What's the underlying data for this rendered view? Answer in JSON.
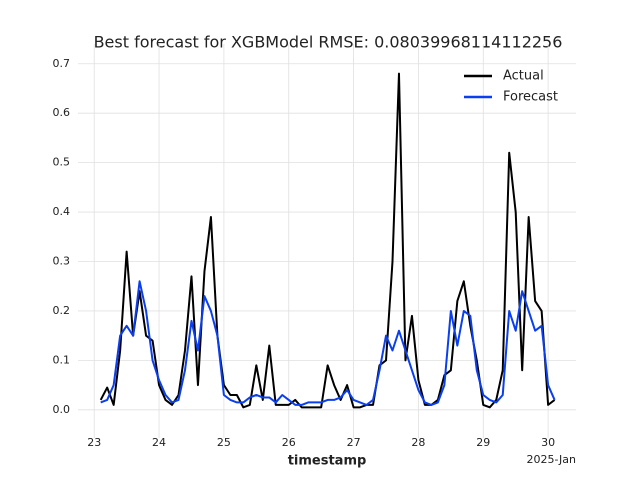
{
  "chart_data": {
    "type": "line",
    "title": "Best forecast for XGBModel RMSE: 0.08039968114112256",
    "x_label": "timestamp",
    "x_offset_label": "2025-Jan",
    "x": [
      23.1,
      23.2,
      23.3,
      23.4,
      23.5,
      23.6,
      23.7,
      23.8,
      23.9,
      24.0,
      24.1,
      24.2,
      24.3,
      24.4,
      24.5,
      24.6,
      24.7,
      24.8,
      24.9,
      25.0,
      25.1,
      25.2,
      25.3,
      25.4,
      25.5,
      25.6,
      25.7,
      25.8,
      25.9,
      26.0,
      26.1,
      26.2,
      26.3,
      26.4,
      26.5,
      26.6,
      26.7,
      26.8,
      26.9,
      27.0,
      27.1,
      27.2,
      27.3,
      27.4,
      27.5,
      27.6,
      27.7,
      27.8,
      27.9,
      28.0,
      28.1,
      28.2,
      28.3,
      28.4,
      28.5,
      28.6,
      28.7,
      28.8,
      28.9,
      29.0,
      29.1,
      29.2,
      29.3,
      29.4,
      29.5,
      29.6,
      29.7,
      29.8,
      29.9,
      30.0,
      30.1
    ],
    "series": [
      {
        "name": "Actual",
        "color": "#000000",
        "values": [
          0.02,
          0.045,
          0.01,
          0.12,
          0.32,
          0.15,
          0.24,
          0.15,
          0.14,
          0.05,
          0.02,
          0.01,
          0.03,
          0.12,
          0.27,
          0.05,
          0.28,
          0.39,
          0.15,
          0.05,
          0.03,
          0.03,
          0.005,
          0.01,
          0.09,
          0.02,
          0.13,
          0.01,
          0.01,
          0.01,
          0.02,
          0.005,
          0.005,
          0.005,
          0.005,
          0.09,
          0.05,
          0.02,
          0.05,
          0.005,
          0.005,
          0.01,
          0.01,
          0.09,
          0.1,
          0.3,
          0.68,
          0.1,
          0.19,
          0.06,
          0.01,
          0.01,
          0.02,
          0.07,
          0.08,
          0.22,
          0.26,
          0.17,
          0.1,
          0.01,
          0.005,
          0.02,
          0.08,
          0.52,
          0.4,
          0.08,
          0.39,
          0.22,
          0.2,
          0.01,
          0.02
        ]
      },
      {
        "name": "Forecast",
        "color": "#0a3ff0",
        "values": [
          0.015,
          0.02,
          0.05,
          0.15,
          0.17,
          0.15,
          0.26,
          0.2,
          0.1,
          0.06,
          0.03,
          0.015,
          0.02,
          0.08,
          0.18,
          0.12,
          0.23,
          0.2,
          0.15,
          0.03,
          0.02,
          0.015,
          0.015,
          0.025,
          0.03,
          0.025,
          0.025,
          0.015,
          0.03,
          0.02,
          0.01,
          0.01,
          0.015,
          0.015,
          0.015,
          0.02,
          0.02,
          0.025,
          0.04,
          0.02,
          0.015,
          0.01,
          0.02,
          0.08,
          0.15,
          0.12,
          0.16,
          0.12,
          0.08,
          0.04,
          0.015,
          0.01,
          0.015,
          0.05,
          0.2,
          0.13,
          0.2,
          0.19,
          0.08,
          0.03,
          0.02,
          0.015,
          0.03,
          0.2,
          0.16,
          0.24,
          0.2,
          0.16,
          0.17,
          0.05,
          0.02
        ]
      }
    ],
    "xlim": [
      22.75,
      30.43
    ],
    "xticks": [
      23,
      24,
      25,
      26,
      27,
      28,
      29,
      30
    ],
    "ylim": [
      -0.057,
      0.74
    ],
    "yticks": [
      {
        "value": 0,
        "label": "0.0"
      },
      0.1,
      0.2,
      0.3,
      0.4,
      0.5,
      0.6,
      0.7
    ],
    "grid": true,
    "legend": "upper right"
  }
}
